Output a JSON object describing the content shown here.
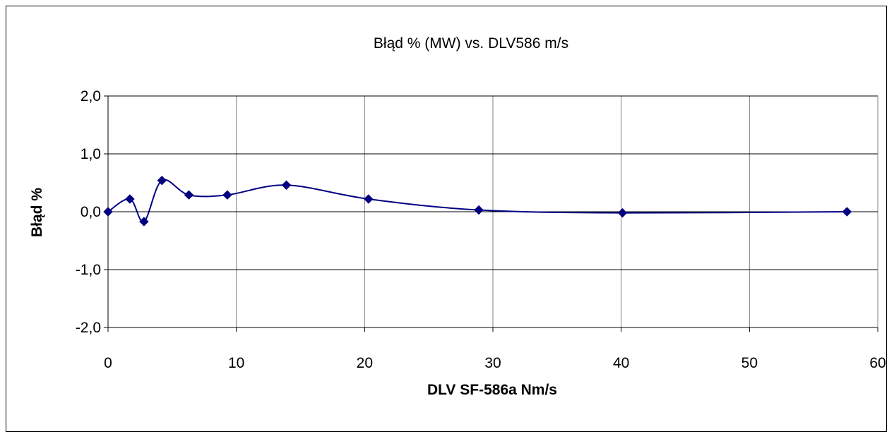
{
  "chart_data": {
    "type": "scatter",
    "title": "Błąd % (MW) vs. DLV586 m/s",
    "xlabel": "DLV SF-586a Nm/s",
    "ylabel": "Błąd %",
    "xlim": [
      0,
      60
    ],
    "ylim": [
      -2,
      2
    ],
    "x_ticks": [
      "0",
      "10",
      "20",
      "30",
      "40",
      "50",
      "60"
    ],
    "y_ticks": [
      "2,0",
      "1,0",
      "0,0",
      "-1,0",
      "-2,0"
    ],
    "grid": true,
    "smoothed_line": true,
    "marker": "diamond",
    "series": [
      {
        "color": "#000080",
        "x": [
          0.0,
          1.7,
          2.8,
          4.2,
          6.3,
          9.3,
          13.9,
          20.3,
          28.9,
          40.1,
          57.6
        ],
        "y": [
          0.0,
          0.22,
          -0.17,
          0.54,
          0.29,
          0.29,
          0.46,
          0.22,
          0.03,
          -0.02,
          0.0
        ]
      }
    ]
  }
}
